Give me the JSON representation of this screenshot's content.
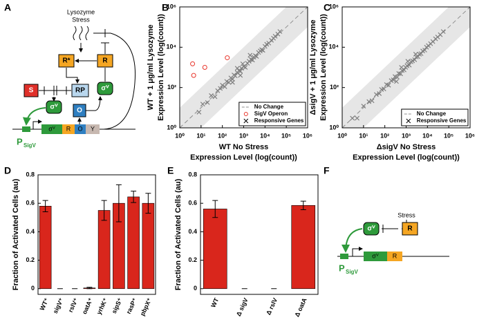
{
  "panels": [
    "A",
    "B",
    "C",
    "D",
    "E",
    "F"
  ],
  "diagram_a": {
    "stress": [
      "Lysozyme",
      "Stress"
    ],
    "r_active": "R*",
    "r": "R",
    "s": "S",
    "rp": "RP",
    "sigma_free": "σⱽ",
    "sigma_bound": "σⱽ",
    "o": "O",
    "gene": [
      "σⱽ",
      "R",
      "O",
      "Y"
    ],
    "promoter": "P",
    "promoter_sub": "SigV"
  },
  "diagram_f": {
    "stress": "Stress",
    "sigma": "σⱽ",
    "r": "R",
    "gene": [
      "σⱽ",
      "R"
    ],
    "promoter": "P",
    "promoter_sub": "SigV"
  },
  "chart_data": [
    {
      "type": "scatter",
      "log": true,
      "xlabel": [
        "WT No Stress",
        "Expression Level (log(count))"
      ],
      "ylabel": [
        "WT + 1 μg/ml Lysozyme",
        "Expression Level (log(count))"
      ],
      "xlim": [
        1,
        1000000
      ],
      "ylim": [
        1,
        1000000
      ],
      "xticks": [
        {
          "value": 1,
          "label": "10⁰"
        },
        {
          "value": 10,
          "label": "10¹"
        },
        {
          "value": 100,
          "label": "10²"
        },
        {
          "value": 1000,
          "label": "10³"
        },
        {
          "value": 10000,
          "label": "10⁴"
        },
        {
          "value": 100000,
          "label": "10⁵"
        },
        {
          "value": 1000000,
          "label": "10⁶"
        }
      ],
      "yticks": [
        {
          "value": 1,
          "label": "10⁰"
        },
        {
          "value": 100,
          "label": "10²"
        },
        {
          "value": 10000,
          "label": "10⁴"
        },
        {
          "value": 1000000,
          "label": "10⁶"
        }
      ],
      "legend": "lower right",
      "series": [
        {
          "name": "No Change",
          "color": "#8c8c8c",
          "line": "dashed",
          "x": [
            1,
            1000000
          ],
          "values": [
            1,
            1000000
          ]
        },
        {
          "name": "SigV Operon",
          "color": "#e8352b",
          "marker": "circle",
          "x": [
            4,
            15,
            170,
            4.5
          ],
          "values": [
            1500,
            1000,
            3000,
            400
          ]
        },
        {
          "name": "Responsive Genes",
          "color": "#7f7f7f",
          "marker": "x",
          "x": [
            12,
            20,
            30,
            45,
            60,
            80,
            100,
            130,
            160,
            200,
            250,
            300,
            350,
            400,
            500,
            600,
            700,
            800,
            1000,
            1200,
            1500,
            1800,
            2200,
            2600,
            3000,
            3500,
            4000,
            5000,
            6000,
            7000,
            8000,
            10000,
            12000,
            15000,
            20000,
            25000,
            30000,
            40000,
            50000,
            8,
            500,
            900,
            2000,
            700,
            300
          ],
          "values": [
            15,
            18,
            40,
            35,
            70,
            90,
            130,
            110,
            200,
            180,
            300,
            260,
            420,
            380,
            550,
            700,
            650,
            900,
            1100,
            1000,
            1600,
            2000,
            2500,
            2300,
            3200,
            3800,
            3500,
            5500,
            6500,
            7500,
            7000,
            11000,
            14000,
            16000,
            22000,
            28000,
            35000,
            45000,
            60000,
            6,
            900,
            1500,
            4000,
            400,
            180
          ]
        }
      ]
    },
    {
      "type": "scatter",
      "log": true,
      "xlabel": [
        "ΔsigV No Stress",
        "Expression Level (log(count))"
      ],
      "ylabel": [
        "ΔsigV + 1 μg/ml Lysozyme",
        "Expression Level (log(count))"
      ],
      "xlim": [
        1,
        1000000
      ],
      "ylim": [
        1,
        1000000
      ],
      "xticks": [
        {
          "value": 1,
          "label": "10⁰"
        },
        {
          "value": 10,
          "label": "10¹"
        },
        {
          "value": 100,
          "label": "10²"
        },
        {
          "value": 1000,
          "label": "10³"
        },
        {
          "value": 10000,
          "label": "10⁴"
        },
        {
          "value": 100000,
          "label": "10⁵"
        },
        {
          "value": 1000000,
          "label": "10⁶"
        }
      ],
      "yticks": [
        {
          "value": 1,
          "label": "10⁰"
        },
        {
          "value": 100,
          "label": "10²"
        },
        {
          "value": 10000,
          "label": "10⁴"
        },
        {
          "value": 1000000,
          "label": "10⁶"
        }
      ],
      "legend": "lower right",
      "series": [
        {
          "name": "No Change",
          "color": "#8c8c8c",
          "line": "dashed",
          "x": [
            1,
            1000000
          ],
          "values": [
            1,
            1000000
          ]
        },
        {
          "name": "Responsive Genes",
          "color": "#7f7f7f",
          "marker": "x",
          "x": [
            3,
            5,
            10,
            18,
            25,
            40,
            55,
            70,
            90,
            120,
            150,
            200,
            250,
            300,
            380,
            450,
            550,
            650,
            800,
            950,
            1100,
            1400,
            1700,
            2000,
            2500,
            3000,
            3600,
            4200,
            5000,
            6000,
            7500,
            9000,
            11000,
            14000,
            18000,
            24000,
            30000,
            40000,
            55000,
            600,
            350,
            1200,
            2800
          ],
          "values": [
            3,
            3,
            12,
            20,
            22,
            45,
            50,
            80,
            85,
            140,
            130,
            220,
            240,
            350,
            330,
            500,
            480,
            700,
            750,
            1000,
            1200,
            1300,
            1900,
            2100,
            2400,
            3300,
            3400,
            4500,
            4800,
            6500,
            7200,
            10000,
            12000,
            15000,
            19000,
            26000,
            32000,
            42000,
            60000,
            1000,
            200,
            2000,
            4500
          ]
        }
      ]
    },
    {
      "type": "bar",
      "ylabel": "Fraction of Activated Cells (au)",
      "categories": [
        "WT⁺",
        "sigV⁺",
        "rslV⁺",
        "oatA⁺",
        "yrhK⁺",
        "sipS⁺",
        "rasP⁺",
        "pbpX⁺"
      ],
      "values": [
        0.58,
        0,
        0,
        0.005,
        0.55,
        0.6,
        0.645,
        0.6
      ],
      "errors": [
        0.04,
        0,
        0,
        0.005,
        0.07,
        0.13,
        0.04,
        0.07
      ],
      "color": "#d9261c",
      "ylim": [
        -0.04,
        0.8
      ],
      "yticks": [
        0,
        0.2,
        0.4,
        0.6,
        0.8
      ]
    },
    {
      "type": "bar",
      "ylabel": "Fraction of Activated Cells (au)",
      "categories": [
        "WT",
        "Δ sigV",
        "Δ rslV",
        "Δ oatA"
      ],
      "values": [
        0.56,
        0,
        0,
        0.585
      ],
      "errors": [
        0.06,
        0,
        0,
        0.03
      ],
      "color": "#d9261c",
      "ylim": [
        -0.04,
        0.8
      ],
      "yticks": [
        0,
        0.2,
        0.4,
        0.6,
        0.8
      ]
    }
  ]
}
